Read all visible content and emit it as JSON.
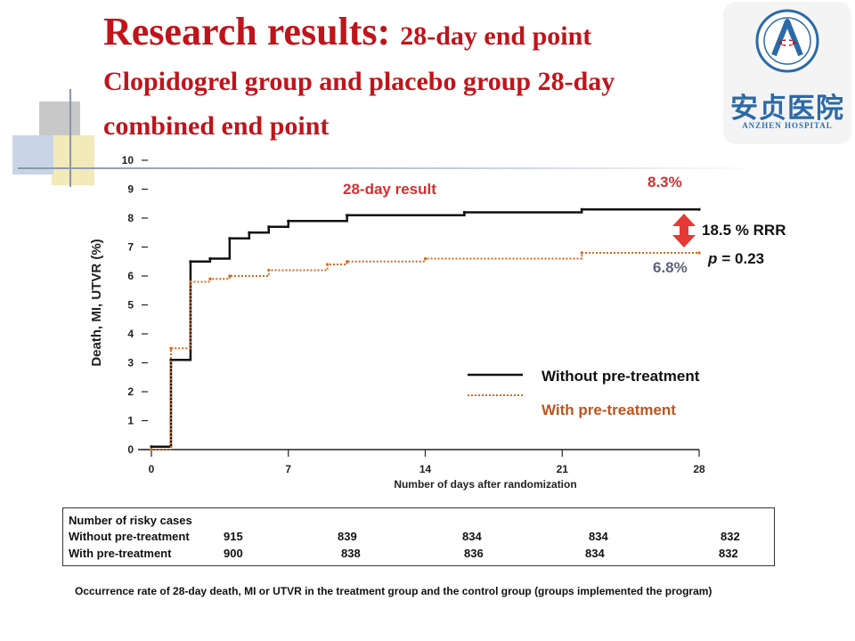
{
  "title": {
    "line1_main": "Research results:",
    "line1_sub": "28-day end point",
    "line2": "Clopidogrel group and placebo group 28-day",
    "line3": "combined end point"
  },
  "logo": {
    "cn_text": "安贞医院",
    "en_text": "ANZHEN HOSPITAL"
  },
  "colors": {
    "title": "#c0141b",
    "without": "#111111",
    "with": "#d2691e",
    "with_label": "#c0541e",
    "accent_red": "#d32f2f",
    "gray_blue": "#5a6578"
  },
  "chart_data": {
    "type": "line",
    "xlabel": "Number of days after randomization",
    "ylabel": "Death, MI, UTVR (%)",
    "xlim": [
      0,
      28
    ],
    "ylim": [
      0,
      10
    ],
    "x_ticks": [
      "0",
      "7",
      "14",
      "21",
      "28"
    ],
    "y_ticks": [
      "0",
      "1",
      "2",
      "3",
      "4",
      "5",
      "6",
      "7",
      "8",
      "9",
      "10"
    ],
    "series": [
      {
        "name": "Without pre-treatment",
        "style": "solid",
        "color": "#111111",
        "x": [
          0,
          1,
          2,
          3,
          4,
          5,
          6,
          7,
          10,
          16,
          22,
          28
        ],
        "y": [
          0.1,
          3.1,
          6.5,
          6.6,
          7.3,
          7.5,
          7.7,
          7.9,
          8.1,
          8.2,
          8.3,
          8.3
        ]
      },
      {
        "name": "With pre-treatment",
        "style": "dotted",
        "color": "#d2691e",
        "x": [
          0,
          1,
          2,
          3,
          4,
          6,
          9,
          10,
          14,
          22,
          28
        ],
        "y": [
          0.0,
          3.5,
          5.8,
          5.9,
          6.0,
          6.2,
          6.4,
          6.5,
          6.6,
          6.8,
          6.8
        ]
      }
    ],
    "annotations": {
      "period_label": "28-day result",
      "value_without": "8.3%",
      "value_with": "6.8%",
      "rrr": "18.5 % RRR",
      "p_prefix": "p",
      "p_value": "= 0.23"
    },
    "legend": {
      "placement": "bottom-right",
      "without_label": "Without pre-treatment",
      "with_label": "With pre-treatment"
    }
  },
  "risk_table": {
    "heading": "Number of  risky cases",
    "rows": [
      {
        "label": "Without pre-treatment",
        "values": [
          "915",
          "839",
          "834",
          "834",
          "832"
        ]
      },
      {
        "label": "With pre-treatment",
        "values": [
          "900",
          "838",
          "836",
          "834",
          "832"
        ]
      }
    ]
  },
  "footer": "Occurrence rate of 28-day death,  MI or UTVR  in the treatment group and the control group (groups implemented the program)"
}
